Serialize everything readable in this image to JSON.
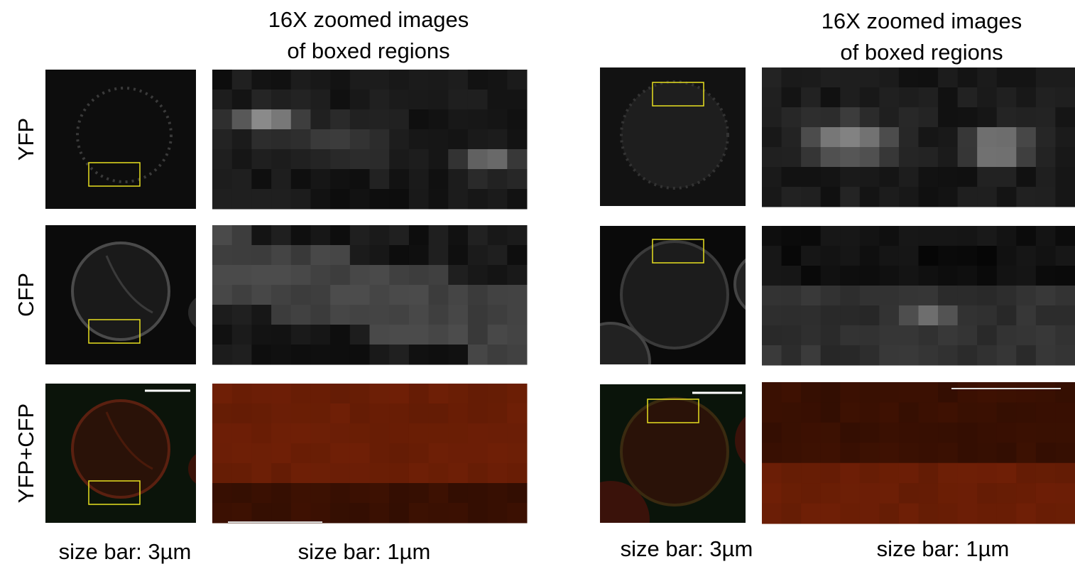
{
  "left_panel": {
    "heading": [
      "16X zoomed images",
      "of boxed regions"
    ],
    "row_labels": [
      "YFP",
      "CFP",
      "YFP+CFP"
    ],
    "captions": [
      "size bar: 3µm",
      "size bar: 1µm"
    ]
  },
  "right_panel": {
    "heading": [
      "16X zoomed images",
      "of boxed regions"
    ],
    "captions": [
      "size bar: 3µm",
      "size bar: 1µm"
    ]
  }
}
